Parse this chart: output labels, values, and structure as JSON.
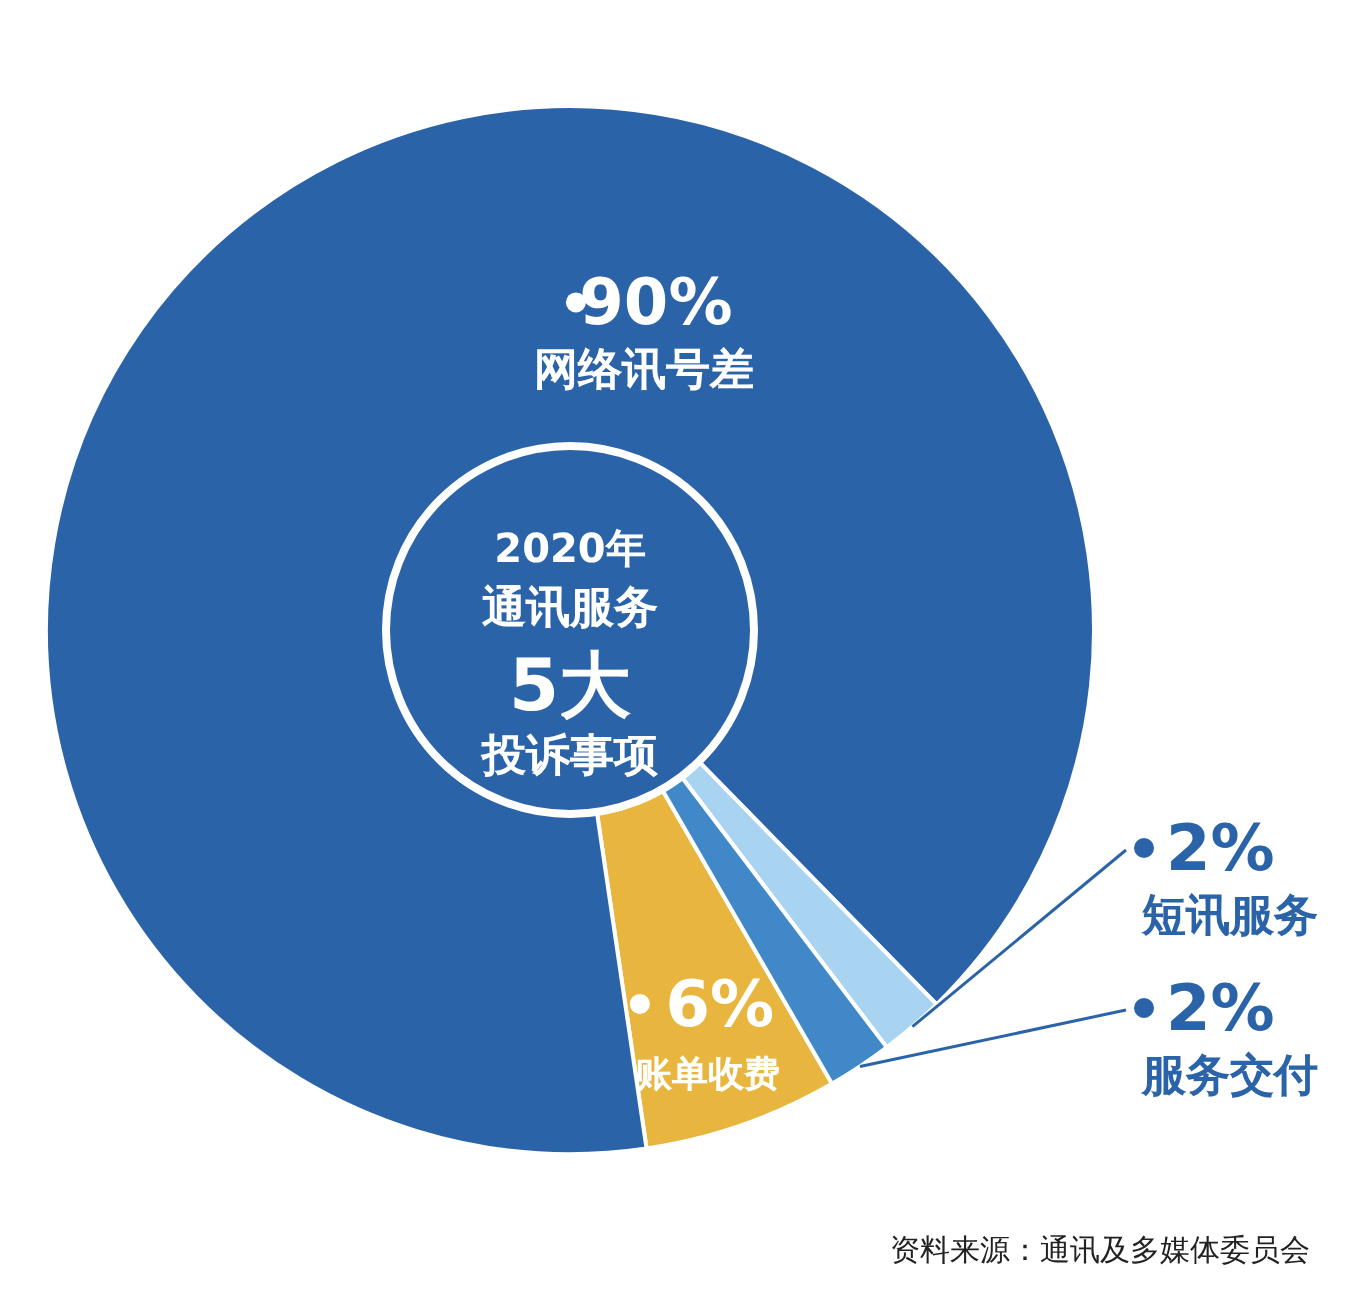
{
  "chart_data": {
    "type": "donut",
    "title": "2020年通讯服务5大投诉事项",
    "categories": [
      "账单收费",
      "网络讯号差",
      "短讯服务",
      "服务交付"
    ],
    "values": [
      6,
      90,
      2,
      2
    ],
    "value_labels": [
      "6%",
      "90%",
      "2%",
      "2%"
    ],
    "colors": [
      "#e8b63e",
      "#2b63a9",
      "#a8d3f1",
      "#4088c8"
    ],
    "annotations": [
      "资料来源：通讯及多媒体委员会"
    ]
  }
}
